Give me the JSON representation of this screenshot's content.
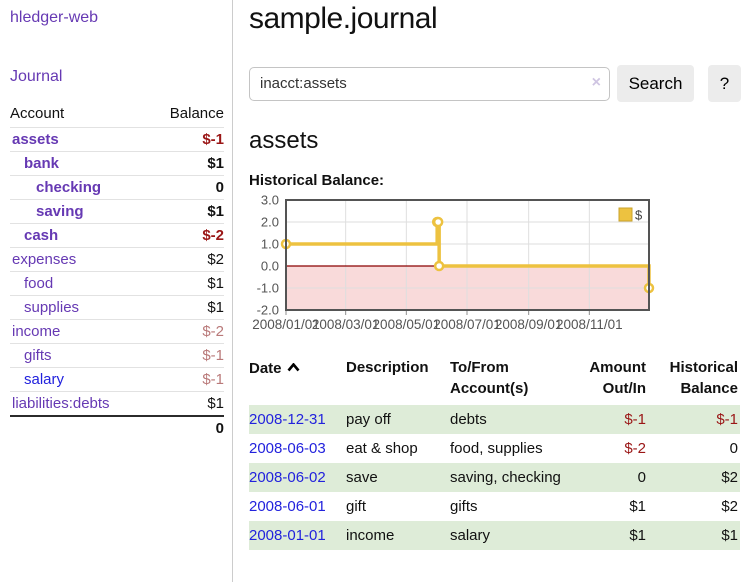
{
  "colors": {
    "accent_purple": "#6639b3",
    "link_blue": "#2222dd",
    "negative_red": "#9a1616",
    "muted_negative_red": "#b97979",
    "row_green": "#deecd8",
    "series_gold": "#edc240",
    "negative_region_pink": "#f9dada",
    "zero_line_red": "#8b0000"
  },
  "sidebar": {
    "brand": "hledger-web",
    "nav_journal": "Journal",
    "accounts_table": {
      "headers": {
        "account": "Account",
        "balance": "Balance"
      },
      "rows": [
        {
          "name": "assets",
          "balance": "$-1"
        },
        {
          "name": "bank",
          "balance": "$1"
        },
        {
          "name": "checking",
          "balance": "0"
        },
        {
          "name": "saving",
          "balance": "$1"
        },
        {
          "name": "cash",
          "balance": "$-2"
        },
        {
          "name": "expenses",
          "balance": "$2"
        },
        {
          "name": "food",
          "balance": "$1"
        },
        {
          "name": "supplies",
          "balance": "$1"
        },
        {
          "name": "income",
          "balance": "$-2"
        },
        {
          "name": "gifts",
          "balance": "$-1"
        },
        {
          "name": "salary",
          "balance": "$-1"
        },
        {
          "name": "liabilities:debts",
          "balance": "$1"
        }
      ],
      "total": "0"
    }
  },
  "header": {
    "title": "sample.journal"
  },
  "search": {
    "value": "inacct:assets",
    "clear_icon": "×",
    "search_label": "Search",
    "help_label": "?"
  },
  "account_page": {
    "heading": "assets",
    "chart_title": "Historical Balance:"
  },
  "chart_data": {
    "type": "line",
    "title": "Historical Balance:",
    "step": true,
    "series": [
      {
        "name": "$",
        "color": "#edc240",
        "points": [
          [
            "2008-01-01",
            1
          ],
          [
            "2008-06-01",
            2
          ],
          [
            "2008-06-02",
            2
          ],
          [
            "2008-06-03",
            0
          ],
          [
            "2008-12-31",
            -1
          ]
        ]
      }
    ],
    "xlim": [
      "2008-01-01",
      "2008-12-31"
    ],
    "ylim": [
      -2,
      3
    ],
    "y_ticks": [
      "3.0",
      "2.0",
      "1.0",
      "0.0",
      "-1.0",
      "-2.0"
    ],
    "x_ticks": [
      "2008/01/01",
      "2008/03/01",
      "2008/05/01",
      "2008/07/01",
      "2008/09/01",
      "2008/11/01"
    ],
    "x_tick_dates": [
      "2008-01-01",
      "2008-03-01",
      "2008-05-01",
      "2008-07-01",
      "2008-09-01",
      "2008-11-01"
    ],
    "legend_position": "top-right",
    "grid": true,
    "negative_region_color": "#f9dada",
    "zero_line_color": "#8b0000"
  },
  "register": {
    "headers": {
      "date": "Date",
      "description": "Description",
      "tofrom": "To/From Account(s)",
      "amount": "Amount Out/In",
      "balance": "Historical Balance"
    },
    "sort_icon": "chevron-up",
    "rows": [
      {
        "date": "2008-12-31",
        "description": "pay off",
        "tofrom": "debts",
        "amount": "$-1",
        "balance": "$-1"
      },
      {
        "date": "2008-06-03",
        "description": "eat & shop",
        "tofrom": "food, supplies",
        "amount": "$-2",
        "balance": "0"
      },
      {
        "date": "2008-06-02",
        "description": "save",
        "tofrom": "saving, checking",
        "amount": "0",
        "balance": "$2"
      },
      {
        "date": "2008-06-01",
        "description": "gift",
        "tofrom": "gifts",
        "amount": "$1",
        "balance": "$2"
      },
      {
        "date": "2008-01-01",
        "description": "income",
        "tofrom": "salary",
        "amount": "$1",
        "balance": "$1"
      }
    ]
  }
}
